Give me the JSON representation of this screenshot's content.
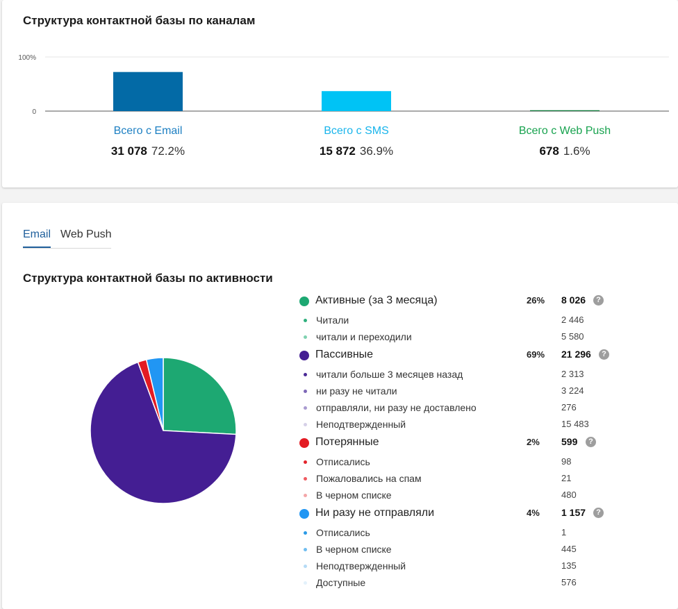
{
  "channels_card": {
    "title": "Структура контактной базы по каналам",
    "axis_top_label": "100%",
    "axis_zero_label": "0",
    "channels": [
      {
        "label": "Всего с Email",
        "count": "31 078",
        "percent": "72.2%",
        "value": 72.2,
        "color": "#036aa6",
        "label_color": "#1c7fc2"
      },
      {
        "label": "Всего с SMS",
        "count": "15 872",
        "percent": "36.9%",
        "value": 36.9,
        "color": "#00c3f5",
        "label_color": "#18b4eb"
      },
      {
        "label": "Всего с Web Push",
        "count": "678",
        "percent": "1.6%",
        "value": 1.6,
        "color": "#0f7a3a",
        "label_color": "#17a24e"
      }
    ]
  },
  "chart_data": [
    {
      "type": "bar",
      "title": "Структура контактной базы по каналам",
      "categories": [
        "Всего с Email",
        "Всего с SMS",
        "Всего с Web Push"
      ],
      "values": [
        72.2,
        36.9,
        1.6
      ],
      "ylim": [
        0,
        100
      ],
      "tick_labels": [
        "0",
        "100%"
      ],
      "grid": true
    },
    {
      "type": "pie",
      "title": "Структура контактной базы по активности",
      "categories": [
        "Активные (за 3 месяца)",
        "Пассивные",
        "Потерянные",
        "Ни разу не отправляли"
      ],
      "values": [
        8026,
        21296,
        599,
        1157
      ],
      "colors": [
        "#1da872",
        "#441e93",
        "#e31b23",
        "#2196f3"
      ]
    }
  ],
  "activity_card": {
    "tabs": [
      {
        "label": "Email",
        "active": true
      },
      {
        "label": "Web Push",
        "active": false
      }
    ],
    "title": "Структура контактной базы по активности",
    "help_glyph": "?",
    "groups": [
      {
        "label": "Активные (за 3 месяца)",
        "percent": "26%",
        "count": "8 026",
        "color": "#1da872",
        "items": [
          {
            "label": "Читали",
            "count": "2 446",
            "color": "#2eaf7d"
          },
          {
            "label": "читали и переходили",
            "count": "5 580",
            "color": "#7fd1b0"
          }
        ]
      },
      {
        "label": "Пассивные",
        "percent": "69%",
        "count": "21 296",
        "color": "#441e93",
        "items": [
          {
            "label": "читали больше 3 месяцев назад",
            "count": "2 313",
            "color": "#4a2a96"
          },
          {
            "label": "ни разу не читали",
            "count": "3 224",
            "color": "#7d67b7"
          },
          {
            "label": "отправляли, ни разу не доставлено",
            "count": "276",
            "color": "#a99bd0"
          },
          {
            "label": "Неподтвержденный",
            "count": "15 483",
            "color": "#d6d0e8"
          }
        ]
      },
      {
        "label": "Потерянные",
        "percent": "2%",
        "count": "599",
        "color": "#e31b23",
        "items": [
          {
            "label": "Отписались",
            "count": "98",
            "color": "#e3242c"
          },
          {
            "label": "Пожаловались на спам",
            "count": "21",
            "color": "#ef5a60"
          },
          {
            "label": "В черном списке",
            "count": "480",
            "color": "#f4a6a8"
          }
        ]
      },
      {
        "label": "Ни разу не отправляли",
        "percent": "4%",
        "count": "1 157",
        "color": "#2196f3",
        "items": [
          {
            "label": "Отписались",
            "count": "1",
            "color": "#2b9ae6"
          },
          {
            "label": "В черном списке",
            "count": "445",
            "color": "#6fbdf0"
          },
          {
            "label": "Неподтвержденный",
            "count": "135",
            "color": "#b5dbf6"
          },
          {
            "label": "Доступные",
            "count": "576",
            "color": "#e3f1fb"
          }
        ]
      }
    ]
  }
}
